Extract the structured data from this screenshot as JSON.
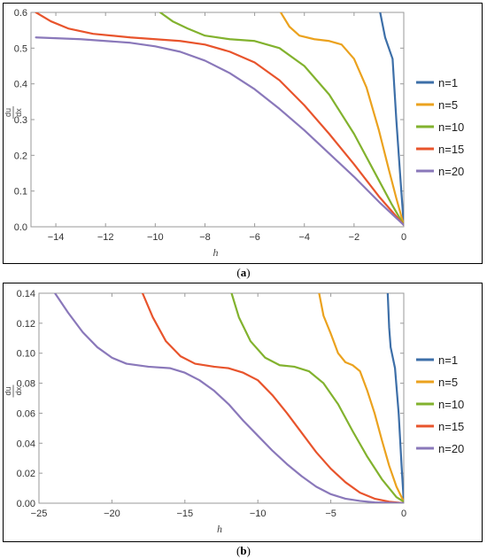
{
  "chart_data": [
    {
      "id": "a",
      "type": "line",
      "caption_letter": "a",
      "xlabel": "h",
      "ylabel_num": "du",
      "ylabel_den": "dx",
      "xlim": [
        -15,
        0
      ],
      "ylim": [
        0,
        0.6
      ],
      "xticks": [
        -14,
        -12,
        -10,
        -8,
        -6,
        -4,
        -2,
        0
      ],
      "yticks": [
        0.0,
        0.1,
        0.2,
        0.3,
        0.4,
        0.5,
        0.6
      ],
      "ytick_decimals": 1,
      "legend_position": "right",
      "series": [
        {
          "name": "n=1",
          "color": "#3d6fa8",
          "points": [
            [
              -0.95,
              0.6
            ],
            [
              -0.75,
              0.53
            ],
            [
              -0.45,
              0.47
            ],
            [
              -0.3,
              0.3
            ],
            [
              -0.15,
              0.15
            ],
            [
              0,
              0.005
            ]
          ]
        },
        {
          "name": "n=5",
          "color": "#eba21e",
          "points": [
            [
              -4.95,
              0.6
            ],
            [
              -4.6,
              0.56
            ],
            [
              -4.2,
              0.535
            ],
            [
              -3.6,
              0.525
            ],
            [
              -3.0,
              0.52
            ],
            [
              -2.5,
              0.51
            ],
            [
              -2.0,
              0.47
            ],
            [
              -1.5,
              0.39
            ],
            [
              -1.0,
              0.27
            ],
            [
              -0.6,
              0.16
            ],
            [
              -0.3,
              0.08
            ],
            [
              0,
              0.005
            ]
          ]
        },
        {
          "name": "n=10",
          "color": "#82b22e",
          "points": [
            [
              -9.8,
              0.6
            ],
            [
              -9.3,
              0.575
            ],
            [
              -8.7,
              0.555
            ],
            [
              -8.0,
              0.535
            ],
            [
              -7.0,
              0.525
            ],
            [
              -6.0,
              0.52
            ],
            [
              -5.0,
              0.5
            ],
            [
              -4.0,
              0.45
            ],
            [
              -3.0,
              0.37
            ],
            [
              -2.0,
              0.26
            ],
            [
              -1.0,
              0.13
            ],
            [
              -0.5,
              0.065
            ],
            [
              0,
              0.005
            ]
          ]
        },
        {
          "name": "n=15",
          "color": "#e8542c",
          "points": [
            [
              -14.8,
              0.6
            ],
            [
              -14.2,
              0.575
            ],
            [
              -13.5,
              0.555
            ],
            [
              -12.5,
              0.54
            ],
            [
              -11.0,
              0.53
            ],
            [
              -10.0,
              0.525
            ],
            [
              -9.0,
              0.52
            ],
            [
              -8.0,
              0.51
            ],
            [
              -7.0,
              0.49
            ],
            [
              -6.0,
              0.46
            ],
            [
              -5.0,
              0.41
            ],
            [
              -4.0,
              0.34
            ],
            [
              -3.0,
              0.26
            ],
            [
              -2.0,
              0.175
            ],
            [
              -1.0,
              0.085
            ],
            [
              0,
              0.005
            ]
          ]
        },
        {
          "name": "n=20",
          "color": "#8a78ba",
          "points": [
            [
              -14.8,
              0.53
            ],
            [
              -13.0,
              0.525
            ],
            [
              -11.0,
              0.515
            ],
            [
              -10.0,
              0.505
            ],
            [
              -9.0,
              0.49
            ],
            [
              -8.0,
              0.465
            ],
            [
              -7.0,
              0.43
            ],
            [
              -6.0,
              0.385
            ],
            [
              -5.0,
              0.33
            ],
            [
              -4.0,
              0.27
            ],
            [
              -3.0,
              0.205
            ],
            [
              -2.0,
              0.14
            ],
            [
              -1.0,
              0.07
            ],
            [
              0,
              0.005
            ]
          ]
        }
      ]
    },
    {
      "id": "b",
      "type": "line",
      "caption_letter": "b",
      "xlabel": "h",
      "ylabel_num": "du",
      "ylabel_den": "dx",
      "xlim": [
        -25,
        0
      ],
      "ylim": [
        0,
        0.14
      ],
      "xticks": [
        -25,
        -20,
        -15,
        -10,
        -5,
        0
      ],
      "yticks": [
        0.0,
        0.02,
        0.04,
        0.06,
        0.08,
        0.1,
        0.12,
        0.14
      ],
      "ytick_decimals": 2,
      "legend_position": "right",
      "series": [
        {
          "name": "n=1",
          "color": "#3d6fa8",
          "points": [
            [
              -1.1,
              0.14
            ],
            [
              -1.0,
              0.117
            ],
            [
              -0.9,
              0.104
            ],
            [
              -0.6,
              0.09
            ],
            [
              -0.35,
              0.06
            ],
            [
              -0.15,
              0.025
            ],
            [
              0,
              0.001
            ]
          ]
        },
        {
          "name": "n=5",
          "color": "#eba21e",
          "points": [
            [
              -5.8,
              0.14
            ],
            [
              -5.5,
              0.125
            ],
            [
              -5.0,
              0.113
            ],
            [
              -4.5,
              0.1
            ],
            [
              -4.0,
              0.094
            ],
            [
              -3.5,
              0.092
            ],
            [
              -3.0,
              0.088
            ],
            [
              -2.5,
              0.075
            ],
            [
              -2.0,
              0.06
            ],
            [
              -1.5,
              0.042
            ],
            [
              -1.0,
              0.025
            ],
            [
              -0.5,
              0.011
            ],
            [
              0,
              0.001
            ]
          ]
        },
        {
          "name": "n=10",
          "color": "#82b22e",
          "points": [
            [
              -11.8,
              0.14
            ],
            [
              -11.3,
              0.124
            ],
            [
              -10.5,
              0.108
            ],
            [
              -9.5,
              0.097
            ],
            [
              -8.5,
              0.092
            ],
            [
              -7.5,
              0.091
            ],
            [
              -6.5,
              0.088
            ],
            [
              -5.5,
              0.08
            ],
            [
              -4.5,
              0.066
            ],
            [
              -3.5,
              0.048
            ],
            [
              -2.5,
              0.031
            ],
            [
              -1.5,
              0.016
            ],
            [
              -0.5,
              0.004
            ],
            [
              0,
              0.001
            ]
          ]
        },
        {
          "name": "n=15",
          "color": "#e8542c",
          "points": [
            [
              -17.9,
              0.14
            ],
            [
              -17.2,
              0.124
            ],
            [
              -16.3,
              0.108
            ],
            [
              -15.3,
              0.098
            ],
            [
              -14.3,
              0.093
            ],
            [
              -13.0,
              0.091
            ],
            [
              -12.0,
              0.09
            ],
            [
              -11.0,
              0.087
            ],
            [
              -10.0,
              0.082
            ],
            [
              -9.0,
              0.072
            ],
            [
              -8.0,
              0.06
            ],
            [
              -7.0,
              0.047
            ],
            [
              -6.0,
              0.034
            ],
            [
              -5.0,
              0.023
            ],
            [
              -4.0,
              0.014
            ],
            [
              -3.0,
              0.007
            ],
            [
              -2.0,
              0.003
            ],
            [
              -1.0,
              0.001
            ],
            [
              0,
              0.0
            ]
          ]
        },
        {
          "name": "n=20",
          "color": "#8a78ba",
          "points": [
            [
              -23.9,
              0.14
            ],
            [
              -23.0,
              0.127
            ],
            [
              -22.0,
              0.114
            ],
            [
              -21.0,
              0.104
            ],
            [
              -20.0,
              0.097
            ],
            [
              -19.0,
              0.093
            ],
            [
              -17.5,
              0.091
            ],
            [
              -16.0,
              0.09
            ],
            [
              -15.0,
              0.087
            ],
            [
              -14.0,
              0.082
            ],
            [
              -13.0,
              0.075
            ],
            [
              -12.0,
              0.066
            ],
            [
              -11.0,
              0.055
            ],
            [
              -10.0,
              0.045
            ],
            [
              -9.0,
              0.035
            ],
            [
              -8.0,
              0.026
            ],
            [
              -7.0,
              0.018
            ],
            [
              -6.0,
              0.011
            ],
            [
              -5.0,
              0.006
            ],
            [
              -4.0,
              0.003
            ],
            [
              -3.0,
              0.0015
            ],
            [
              -2.0,
              0.0005
            ],
            [
              0,
              0.0
            ]
          ]
        }
      ]
    }
  ]
}
